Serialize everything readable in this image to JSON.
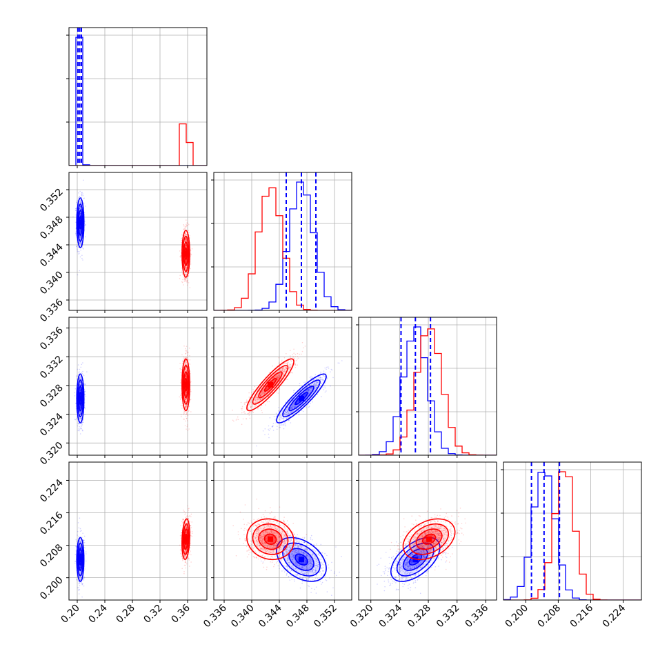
{
  "chart_data": {
    "type": "corner",
    "title": "",
    "colors": {
      "series_a": "#0000ff",
      "series_b": "#ff0000",
      "grid": "#b0b0b0",
      "axes": "#000000"
    },
    "series": [
      {
        "color": "#0000ff",
        "means": [
          0.2045,
          0.3472,
          0.3262,
          0.2045
        ],
        "sigmas": [
          0.0026,
          0.0018,
          0.0017,
          0.0027
        ],
        "quantiles": [
          [
            0.201,
            0.2035,
            0.206
          ],
          [
            0.345,
            0.3472,
            0.3493
          ],
          [
            0.3242,
            0.3262,
            0.3283
          ],
          [
            0.2014,
            0.2045,
            0.2083
          ]
        ],
        "correlations": {
          "1-2": 0.9,
          "1-3": -0.4,
          "2-3": 0.55,
          "0-1": 0.0,
          "0-2": 0.0,
          "0-3": 0.0
        }
      },
      {
        "color": "#ff0000",
        "means": [
          0.3575,
          0.3427,
          0.3281,
          0.2095
        ],
        "sigmas": [
          0.0028,
          0.0017,
          0.0018,
          0.0025
        ],
        "correlations": {
          "1-2": 0.9,
          "1-3": -0.1,
          "2-3": 0.35,
          "0-1": 0.0,
          "0-2": 0.0,
          "0-3": 0.2
        }
      }
    ],
    "ranges": [
      [
        0.188,
        0.388
      ],
      [
        0.3345,
        0.3545
      ],
      [
        0.3183,
        0.3375
      ],
      [
        0.1945,
        0.2285
      ]
    ],
    "ticks": [
      [
        "0.20",
        "0.24",
        "0.28",
        "0.32",
        "0.36"
      ],
      [
        "0.336",
        "0.340",
        "0.344",
        "0.348",
        "0.352"
      ],
      [
        "0.320",
        "0.324",
        "0.328",
        "0.332",
        "0.336"
      ],
      [
        "0.200",
        "0.208",
        "0.216",
        "0.224"
      ]
    ],
    "tick_values": [
      [
        0.2,
        0.24,
        0.28,
        0.32,
        0.36
      ],
      [
        0.336,
        0.34,
        0.344,
        0.348,
        0.352
      ],
      [
        0.32,
        0.324,
        0.328,
        0.332,
        0.336
      ],
      [
        0.2,
        0.208,
        0.216,
        0.224
      ]
    ],
    "grid": true,
    "bins": 20
  }
}
